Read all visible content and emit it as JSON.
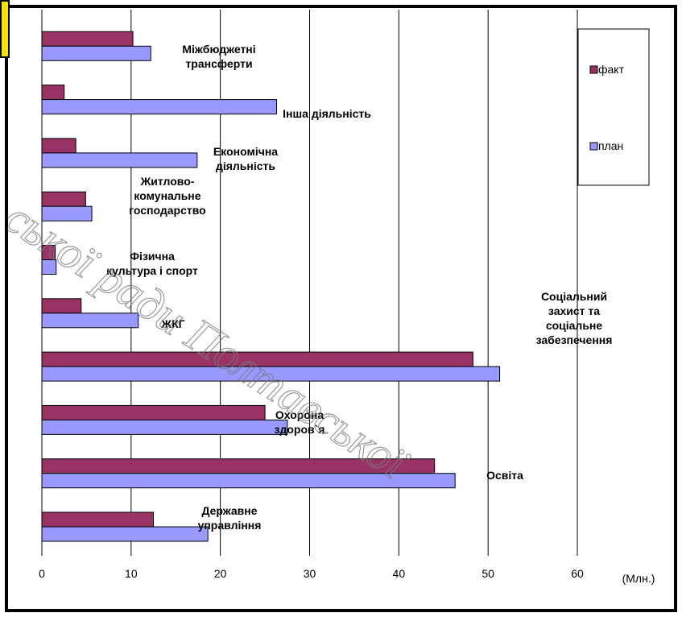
{
  "chart_data": {
    "type": "bar",
    "orientation": "horizontal",
    "categories": [
      "Державне управління",
      "Освіта",
      "Охорона здоров`я",
      "Соціальний захист та соціальне забезпечення",
      "ЖКГ",
      "Фізична культура і спорт",
      "Житлово-комунальне господарство",
      "Економічна діяльність",
      "Інша діяльність",
      "Міжбюджетні трансферти"
    ],
    "category_label_lines": [
      [
        "Державне",
        "управління"
      ],
      [
        "Освіта"
      ],
      [
        "Охорона",
        "здоров`я"
      ],
      [
        "Соціальний",
        "захист та",
        "соціальне",
        "забезпечення"
      ],
      [
        "ЖКГ"
      ],
      [
        "Фізична",
        "культура і спорт"
      ],
      [
        "Житлово-",
        "комунальне",
        "господарство"
      ],
      [
        "Економічна",
        "діяльність"
      ],
      [
        "Інша діяльність"
      ],
      [
        "Міжбюджетні",
        "трансферти"
      ]
    ],
    "series": [
      {
        "name": "факт",
        "color": "#993366",
        "values": [
          12.5,
          44,
          25,
          48.3,
          4.4,
          1.5,
          4.9,
          3.8,
          2.5,
          10.2
        ]
      },
      {
        "name": "план",
        "color": "#9999ff",
        "values": [
          18.6,
          46.3,
          27.5,
          51.3,
          10.8,
          1.6,
          5.6,
          17.4,
          26.3,
          12.2
        ]
      }
    ],
    "x_ticks": [
      "0",
      "10",
      "20",
      "30",
      "40",
      "50",
      "60"
    ],
    "xlim": [
      0,
      60
    ],
    "x_unit_label": "(Млн.)",
    "grid": true,
    "legend_position": "top-right"
  },
  "watermark": {
    "text": "ської ради Полтавської"
  }
}
